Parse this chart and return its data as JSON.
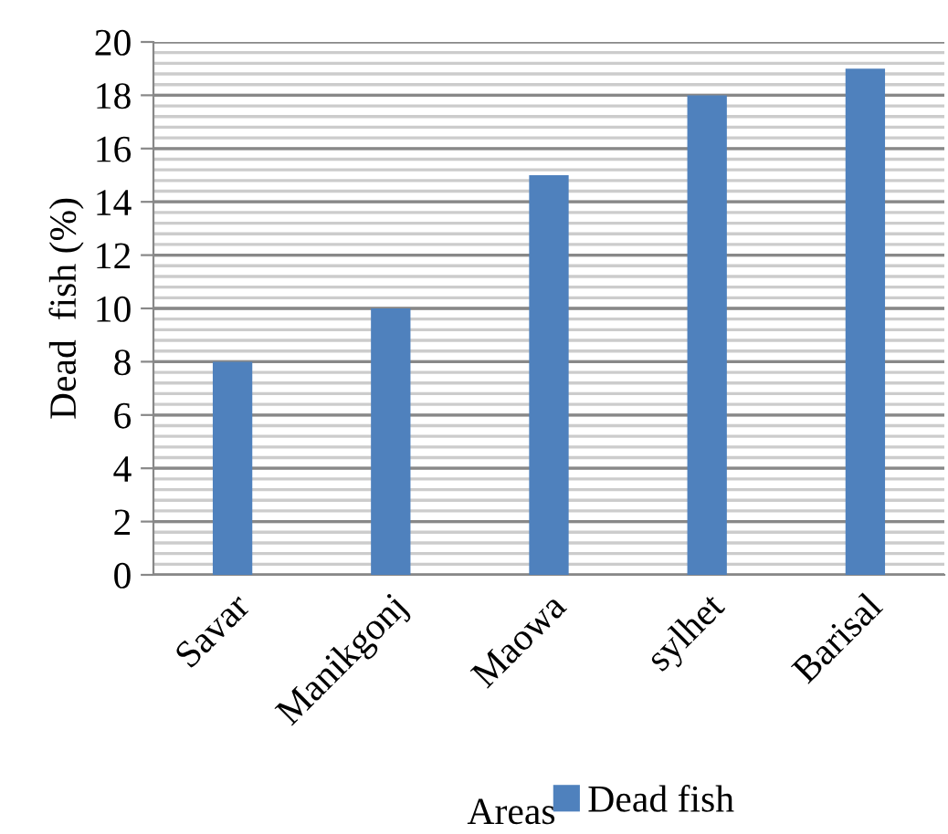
{
  "chart_data": {
    "type": "bar",
    "xlabel": "Areas",
    "ylabel": "Dead  fish (%)",
    "categories": [
      "Savar",
      "Manikgonj",
      "Maowa",
      "sylhet",
      "Barisal"
    ],
    "series": [
      {
        "name": "Dead fish",
        "color": "#4f81bd",
        "values": [
          8,
          10,
          15,
          18,
          19
        ]
      }
    ],
    "ylim": [
      0,
      20
    ],
    "yticks": [
      0,
      2,
      4,
      6,
      8,
      10,
      12,
      14,
      16,
      18,
      20
    ],
    "grid": "y",
    "legend": "bottom"
  }
}
